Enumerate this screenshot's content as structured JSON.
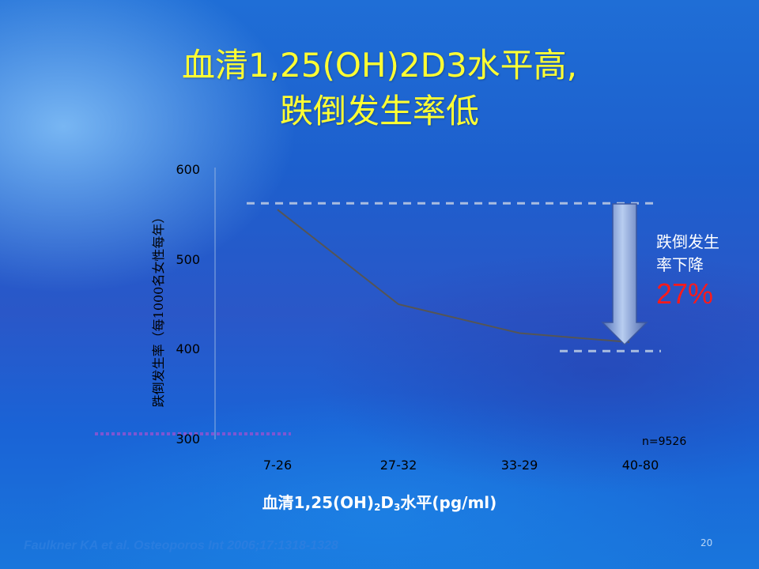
{
  "title": {
    "line1": "血清1,25(OH)2D3水平高,",
    "line2": "跌倒发生率低"
  },
  "chart_data": {
    "type": "line",
    "categories": [
      "7-26",
      "27-32",
      "33-29",
      "40-80"
    ],
    "values": [
      555,
      450,
      418,
      408
    ],
    "ylabel": "跌倒发生率（每1000名女性每年）",
    "ylim": [
      300,
      600
    ],
    "yticks": [
      300,
      400,
      500,
      600
    ],
    "reference_lines": {
      "upper": 562,
      "lower": 398
    },
    "grid": false,
    "legend": "none"
  },
  "xlabel": {
    "part1": "血清1,25(OH)",
    "sub1": "2",
    "part2": "D",
    "sub2": "3",
    "part3": "水平(pg/ml)"
  },
  "n_label": "n=9526",
  "annotation": {
    "line1": "跌倒发生",
    "line2": "率下降",
    "percent": "27%"
  },
  "citation": "Faulkner KA et al. Osteoporos Int 2006;17:1318-1328",
  "page_number": "20",
  "colors": {
    "title": "#ffff33",
    "percent": "#ff1a1a",
    "data_line": "#555555",
    "ref_dash": "#a9bde0"
  }
}
